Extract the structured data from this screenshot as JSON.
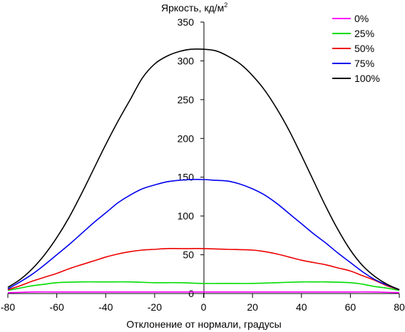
{
  "chart_data": {
    "type": "line",
    "title": "",
    "ylabel": "Яркость, кд/м",
    "ylabel_sup": "2",
    "xlabel": "Отклонение от нормали, градусы",
    "xlim": [
      -80,
      80
    ],
    "ylim": [
      0,
      350
    ],
    "xticks": [
      -80,
      -60,
      -40,
      -20,
      0,
      20,
      40,
      60,
      80
    ],
    "yticks": [
      0,
      50,
      100,
      150,
      200,
      250,
      300,
      350
    ],
    "grid": false,
    "legend_position": "top-right",
    "series": [
      {
        "name": "0%",
        "color": "#ff00ff",
        "points": [
          [
            -80,
            1
          ],
          [
            -70,
            2
          ],
          [
            -60,
            2
          ],
          [
            -40,
            2
          ],
          [
            -20,
            2
          ],
          [
            0,
            2
          ],
          [
            20,
            2
          ],
          [
            40,
            2
          ],
          [
            60,
            2
          ],
          [
            70,
            2
          ],
          [
            80,
            1
          ]
        ]
      },
      {
        "name": "25%",
        "color": "#00dd00",
        "points": [
          [
            -80,
            4
          ],
          [
            -75,
            7
          ],
          [
            -70,
            10
          ],
          [
            -65,
            12
          ],
          [
            -60,
            14
          ],
          [
            -50,
            15
          ],
          [
            -40,
            15
          ],
          [
            -30,
            15
          ],
          [
            -20,
            14
          ],
          [
            -10,
            14
          ],
          [
            0,
            13
          ],
          [
            10,
            13
          ],
          [
            20,
            13
          ],
          [
            30,
            14
          ],
          [
            40,
            15
          ],
          [
            45,
            15
          ],
          [
            50,
            15
          ],
          [
            60,
            14
          ],
          [
            65,
            12
          ],
          [
            70,
            9
          ],
          [
            75,
            7
          ],
          [
            80,
            4
          ]
        ]
      },
      {
        "name": "50%",
        "color": "#ee0000",
        "points": [
          [
            -80,
            5
          ],
          [
            -75,
            10
          ],
          [
            -70,
            16
          ],
          [
            -65,
            21
          ],
          [
            -60,
            26
          ],
          [
            -55,
            32
          ],
          [
            -50,
            37
          ],
          [
            -45,
            42
          ],
          [
            -40,
            47
          ],
          [
            -35,
            51
          ],
          [
            -30,
            54
          ],
          [
            -25,
            56
          ],
          [
            -20,
            57
          ],
          [
            -15,
            58
          ],
          [
            -10,
            58
          ],
          [
            -5,
            58
          ],
          [
            0,
            58
          ],
          [
            10,
            57
          ],
          [
            20,
            56
          ],
          [
            25,
            54
          ],
          [
            30,
            51
          ],
          [
            35,
            47
          ],
          [
            40,
            43
          ],
          [
            45,
            40
          ],
          [
            50,
            37
          ],
          [
            55,
            33
          ],
          [
            60,
            29
          ],
          [
            65,
            23
          ],
          [
            70,
            17
          ],
          [
            75,
            10
          ],
          [
            80,
            5
          ]
        ]
      },
      {
        "name": "75%",
        "color": "#0000ee",
        "points": [
          [
            -80,
            6
          ],
          [
            -75,
            15
          ],
          [
            -70,
            25
          ],
          [
            -65,
            37
          ],
          [
            -60,
            50
          ],
          [
            -55,
            63
          ],
          [
            -50,
            77
          ],
          [
            -45,
            91
          ],
          [
            -40,
            104
          ],
          [
            -35,
            117
          ],
          [
            -30,
            127
          ],
          [
            -25,
            135
          ],
          [
            -20,
            140
          ],
          [
            -15,
            144
          ],
          [
            -10,
            146
          ],
          [
            -5,
            147
          ],
          [
            0,
            147
          ],
          [
            5,
            146
          ],
          [
            10,
            145
          ],
          [
            15,
            141
          ],
          [
            20,
            135
          ],
          [
            25,
            127
          ],
          [
            30,
            116
          ],
          [
            35,
            103
          ],
          [
            40,
            90
          ],
          [
            45,
            77
          ],
          [
            50,
            65
          ],
          [
            55,
            52
          ],
          [
            60,
            40
          ],
          [
            65,
            28
          ],
          [
            70,
            18
          ],
          [
            75,
            11
          ],
          [
            80,
            5
          ]
        ]
      },
      {
        "name": "100%",
        "color": "#000000",
        "points": [
          [
            -80,
            8
          ],
          [
            -75,
            18
          ],
          [
            -70,
            32
          ],
          [
            -65,
            50
          ],
          [
            -60,
            72
          ],
          [
            -55,
            98
          ],
          [
            -50,
            128
          ],
          [
            -45,
            160
          ],
          [
            -40,
            192
          ],
          [
            -35,
            222
          ],
          [
            -30,
            250
          ],
          [
            -25,
            278
          ],
          [
            -20,
            296
          ],
          [
            -15,
            306
          ],
          [
            -10,
            312
          ],
          [
            -5,
            315
          ],
          [
            0,
            315
          ],
          [
            5,
            313
          ],
          [
            10,
            306
          ],
          [
            15,
            296
          ],
          [
            20,
            281
          ],
          [
            25,
            262
          ],
          [
            30,
            238
          ],
          [
            35,
            210
          ],
          [
            40,
            178
          ],
          [
            45,
            145
          ],
          [
            50,
            112
          ],
          [
            55,
            82
          ],
          [
            60,
            56
          ],
          [
            65,
            36
          ],
          [
            70,
            22
          ],
          [
            75,
            12
          ],
          [
            80,
            5
          ]
        ]
      }
    ]
  }
}
